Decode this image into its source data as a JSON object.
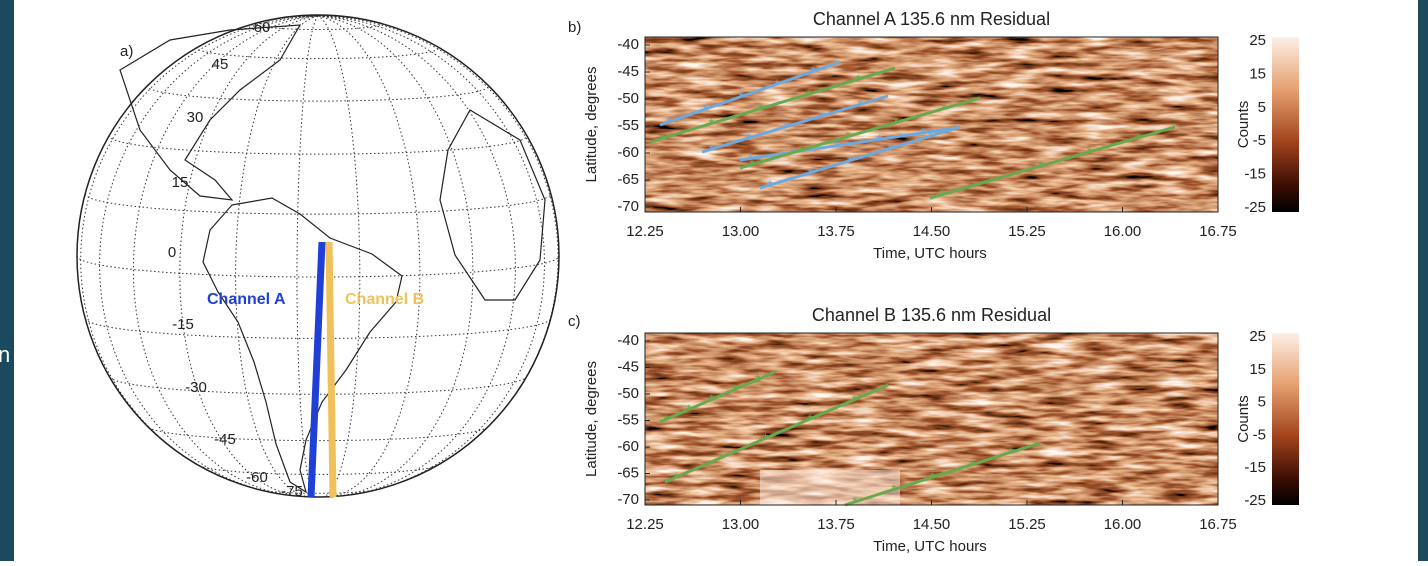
{
  "slide_fragment": "n",
  "panel_a": {
    "label": "a)",
    "latitude_labels": [
      "60",
      "45",
      "30",
      "15",
      "0",
      "-15",
      "-30",
      "-45",
      "-60",
      "-75"
    ],
    "tracks": [
      "Channel A",
      "Channel B"
    ]
  },
  "panel_b": {
    "label": "b)",
    "title": "Channel A 135.6 nm Residual",
    "ylabel": "Latitude, degrees",
    "xlabel": "Time, UTC hours",
    "yticks": [
      "-40",
      "-45",
      "-50",
      "-55",
      "-60",
      "-65",
      "-70"
    ],
    "xticks": [
      "12.25",
      "13.00",
      "13.75",
      "14.50",
      "15.25",
      "16.00",
      "16.75"
    ],
    "colorbar_label": "Counts",
    "colorbar_ticks": [
      "25",
      "15",
      "5",
      "-5",
      "-15",
      "-25"
    ]
  },
  "panel_c": {
    "label": "c)",
    "title": "Channel B 135.6 nm Residual",
    "ylabel": "Latitude, degrees",
    "xlabel": "Time, UTC hours",
    "yticks": [
      "-40",
      "-45",
      "-50",
      "-55",
      "-60",
      "-65",
      "-70"
    ],
    "xticks": [
      "12.25",
      "13.00",
      "13.75",
      "14.50",
      "15.25",
      "16.00",
      "16.75"
    ],
    "colorbar_label": "Counts",
    "colorbar_ticks": [
      "25",
      "15",
      "5",
      "-5",
      "-15",
      "-25"
    ]
  }
}
